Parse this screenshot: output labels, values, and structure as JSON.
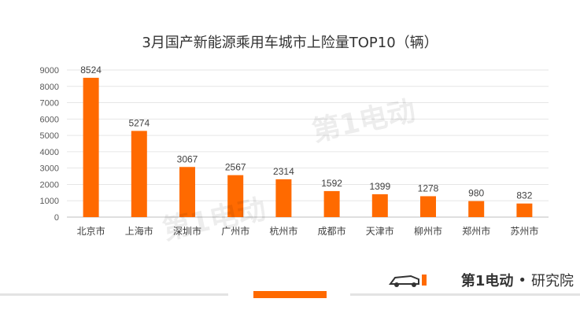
{
  "chart_data": {
    "type": "bar",
    "title": "3月国产新能源乘用车城市上险量TOP10（辆）",
    "categories": [
      "北京市",
      "上海市",
      "深圳市",
      "广州市",
      "杭州市",
      "成都市",
      "天津市",
      "柳州市",
      "郑州市",
      "苏州市"
    ],
    "values": [
      8524,
      5274,
      3067,
      2567,
      2314,
      1592,
      1399,
      1278,
      980,
      832
    ],
    "yticks": [
      "0",
      "1000",
      "2000",
      "3000",
      "4000",
      "5000",
      "6000",
      "7000",
      "8000",
      "9000"
    ],
    "ylim": [
      0,
      9000
    ],
    "grid": true,
    "bar_color": "#ff6a00",
    "data_labels": true
  },
  "branding": {
    "logo_text": "第1电动",
    "separator": "•",
    "suffix": "研究院",
    "accent": "#ff6a00"
  }
}
